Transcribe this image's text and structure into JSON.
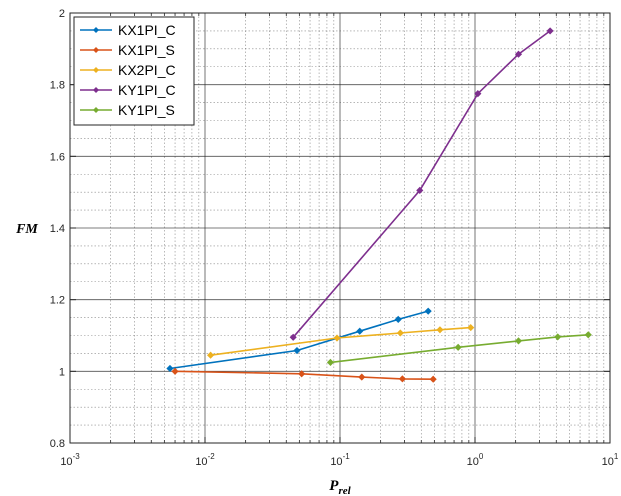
{
  "chart_data": {
    "type": "line",
    "x_scale": "log",
    "y_scale": "linear",
    "xlim": [
      0.001,
      10
    ],
    "ylim": [
      0.8,
      2
    ],
    "grid": true,
    "minor_grid": true,
    "legend_position": "top-left",
    "xlabel": {
      "main": "P",
      "sub": "rel"
    },
    "ylabel": "FM",
    "x_ticks": [
      {
        "value": 0.001,
        "base": "10",
        "exp": "-3"
      },
      {
        "value": 0.01,
        "base": "10",
        "exp": "-2"
      },
      {
        "value": 0.1,
        "base": "10",
        "exp": "-1"
      },
      {
        "value": 1,
        "base": "10",
        "exp": "0"
      },
      {
        "value": 10,
        "base": "10",
        "exp": "1"
      }
    ],
    "y_ticks": [
      {
        "value": 0.8,
        "label": "0.8"
      },
      {
        "value": 1.0,
        "label": "1"
      },
      {
        "value": 1.2,
        "label": "1.2"
      },
      {
        "value": 1.4,
        "label": "1.4"
      },
      {
        "value": 1.6,
        "label": "1.6"
      },
      {
        "value": 1.8,
        "label": "1.8"
      },
      {
        "value": 2.0,
        "label": "2"
      }
    ],
    "series": [
      {
        "name": "KX1PI_C",
        "color": "#0072BD",
        "x": [
          0.0055,
          0.048,
          0.14,
          0.27,
          0.45
        ],
        "y": [
          1.008,
          1.058,
          1.112,
          1.145,
          1.168
        ]
      },
      {
        "name": "KX1PI_S",
        "color": "#D95319",
        "x": [
          0.006,
          0.052,
          0.145,
          0.29,
          0.49
        ],
        "y": [
          1.0,
          0.993,
          0.984,
          0.979,
          0.978
        ]
      },
      {
        "name": "KX2PI_C",
        "color": "#EDB120",
        "x": [
          0.011,
          0.095,
          0.28,
          0.55,
          0.93
        ],
        "y": [
          1.045,
          1.093,
          1.107,
          1.116,
          1.122
        ]
      },
      {
        "name": "KY1PI_C",
        "color": "#7E2F8E",
        "x": [
          0.045,
          0.39,
          1.05,
          2.1,
          3.6
        ],
        "y": [
          1.095,
          1.505,
          1.775,
          1.885,
          1.95
        ]
      },
      {
        "name": "KY1PI_S",
        "color": "#77AC30",
        "x": [
          0.085,
          0.75,
          2.1,
          4.1,
          6.9
        ],
        "y": [
          1.025,
          1.067,
          1.085,
          1.096,
          1.102
        ]
      }
    ]
  }
}
